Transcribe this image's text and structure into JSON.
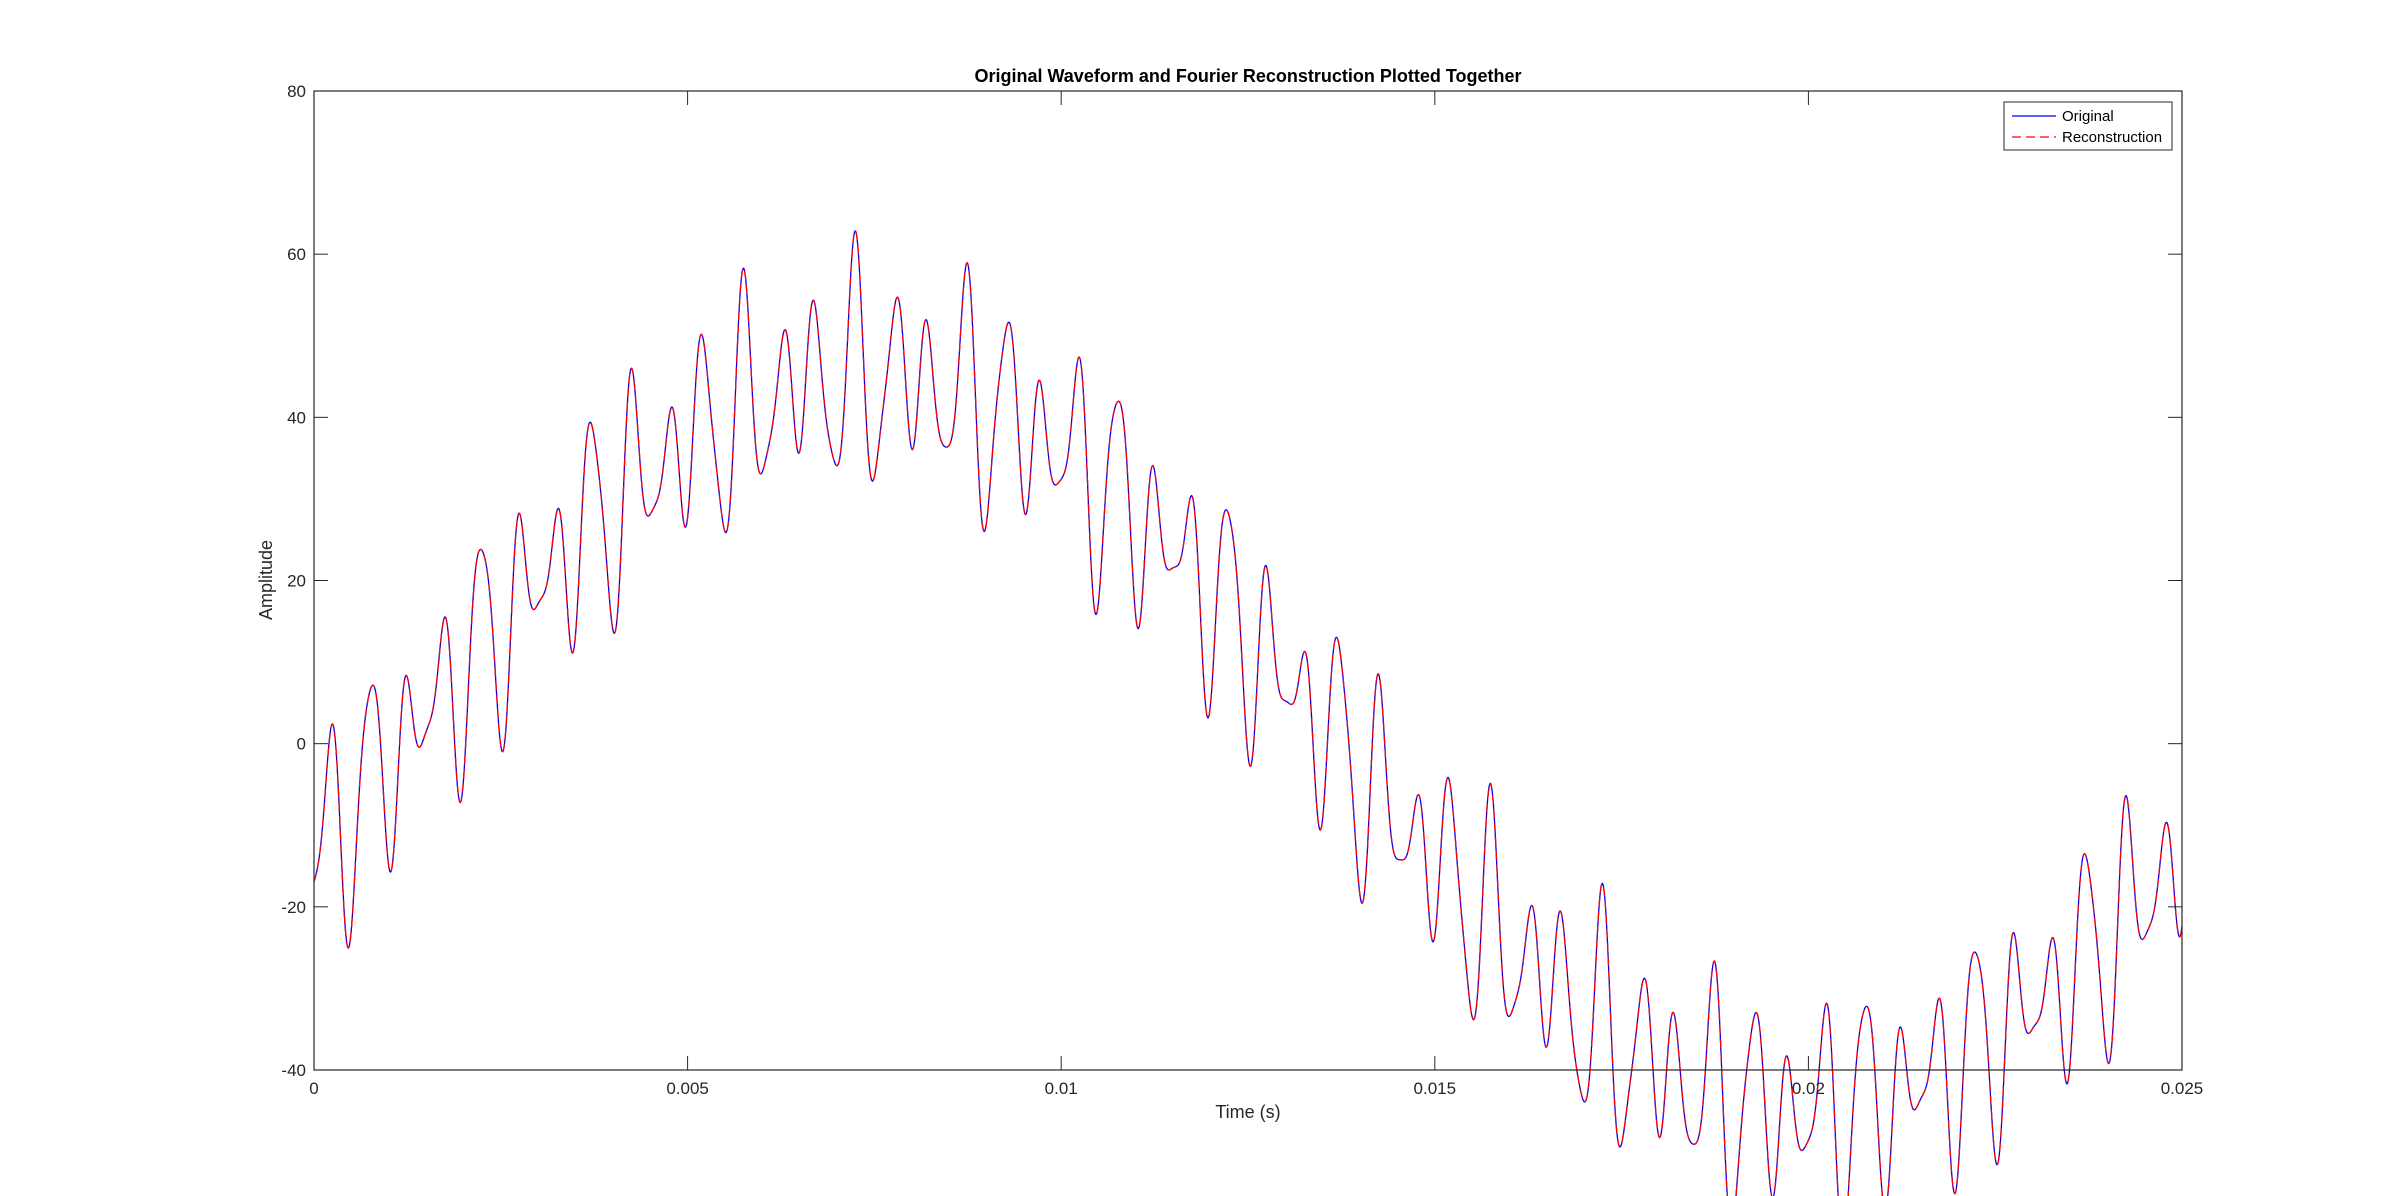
{
  "chart_data": {
    "type": "line",
    "title": "Original Waveform and Fourier Reconstruction Plotted Together",
    "xlabel": "Time (s)",
    "ylabel": "Amplitude",
    "xlim": [
      0,
      0.025
    ],
    "ylim": [
      -40,
      80
    ],
    "x_ticks": [
      0,
      0.005,
      0.01,
      0.015,
      0.02,
      0.025
    ],
    "x_tick_labels": [
      "0",
      "0.005",
      "0.01",
      "0.015",
      "0.02",
      "0.025"
    ],
    "y_ticks": [
      -40,
      -20,
      0,
      20,
      40,
      60,
      80
    ],
    "y_tick_labels": [
      "-40",
      "-20",
      "0",
      "20",
      "40",
      "60",
      "80"
    ],
    "grid": false,
    "legend_position": "top-right",
    "waveform": {
      "x_start": 0,
      "x_end": 0.025,
      "components": [
        {
          "kind": "sin",
          "amplitude": 45,
          "frequency_hz": 40,
          "phase_rad": -0.3
        },
        {
          "kind": "sin",
          "amplitude": 10,
          "frequency_hz": 2000,
          "phase_rad": -1.45
        },
        {
          "kind": "sin",
          "amplitude": 5,
          "frequency_hz": 1400,
          "phase_rad": 0.8
        },
        {
          "kind": "sin",
          "amplitude": 3,
          "frequency_hz": 3300,
          "phase_rad": 2.0
        }
      ]
    },
    "series": [
      {
        "name": "Original",
        "color": "#0000ff",
        "style": "solid"
      },
      {
        "name": "Reconstruction",
        "color": "#ff0000",
        "style": "dashed"
      }
    ]
  }
}
